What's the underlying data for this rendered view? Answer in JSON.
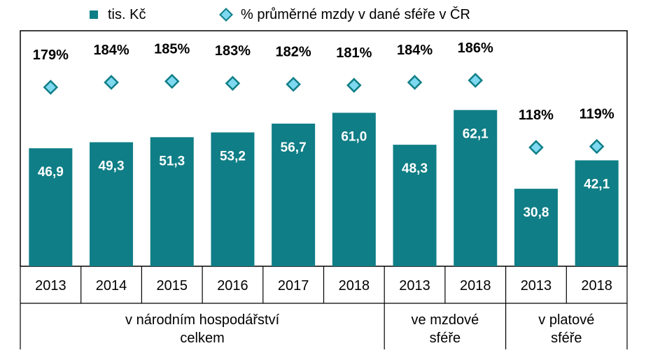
{
  "legend": {
    "bars_label": "tis. Kč",
    "markers_label": "% průměrné mzdy v dané sféře v ČR"
  },
  "colors": {
    "bar": "#0f7e86",
    "marker_fill": "#7ed8f0",
    "marker_stroke": "#0f7e86",
    "bar_label": "#ffffff",
    "pct_label": "#000000"
  },
  "chart_data": {
    "type": "bar",
    "categories": [
      "2013",
      "2014",
      "2015",
      "2016",
      "2017",
      "2018",
      "2013",
      "2018",
      "2013",
      "2018"
    ],
    "groups": [
      {
        "label_lines": [
          "v národním hospodářství",
          "celkem"
        ],
        "count": 6
      },
      {
        "label_lines": [
          "ve mzdové",
          "sféře"
        ],
        "count": 2
      },
      {
        "label_lines": [
          "v platové",
          "sféře"
        ],
        "count": 2
      }
    ],
    "series": [
      {
        "name": "tis. Kč",
        "values": [
          46.9,
          49.3,
          51.3,
          53.2,
          56.7,
          61.0,
          48.3,
          62.1,
          30.8,
          42.1
        ],
        "display": [
          "46,9",
          "49,3",
          "51,3",
          "53,2",
          "56,7",
          "61,0",
          "48,3",
          "62,1",
          "30,8",
          "42,1"
        ]
      },
      {
        "name": "% průměrné mzdy v dané sféře v ČR",
        "values": [
          179,
          184,
          185,
          183,
          182,
          181,
          184,
          186,
          118,
          119
        ],
        "display": [
          "179%",
          "184%",
          "185%",
          "183%",
          "182%",
          "181%",
          "184%",
          "186%",
          "118%",
          "119%"
        ]
      }
    ],
    "ylim": [
      0,
      70
    ],
    "grid": false,
    "legend_position": "top"
  }
}
